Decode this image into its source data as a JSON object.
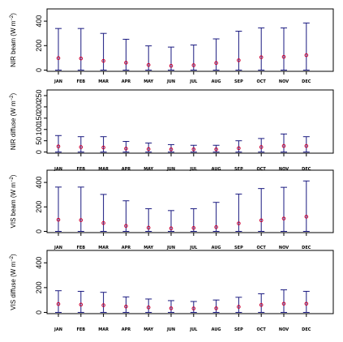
{
  "chart_data": [
    {
      "type": "scatter",
      "title": "",
      "ylabel": {
        "main": "NIR beam (W m",
        "sup": "−2",
        "close": ")"
      },
      "ylim": [
        -10,
        500
      ],
      "yticks": [
        0,
        200,
        400
      ],
      "categories": [
        "JAN",
        "FEB",
        "MAR",
        "APR",
        "MAY",
        "JUN",
        "JUL",
        "AUG",
        "SEP",
        "OCT",
        "NOV",
        "DEC"
      ],
      "series": [
        {
          "role": "mean",
          "values": [
            98,
            95,
            75,
            60,
            42,
            35,
            40,
            58,
            80,
            105,
            108,
            122
          ]
        },
        {
          "role": "range_min",
          "values": [
            0,
            0,
            0,
            0,
            0,
            0,
            0,
            0,
            0,
            0,
            0,
            0
          ]
        },
        {
          "role": "range_max",
          "values": [
            340,
            340,
            300,
            252,
            198,
            188,
            205,
            255,
            318,
            345,
            345,
            385
          ]
        }
      ],
      "grid": false
    },
    {
      "type": "scatter",
      "title": "",
      "ylabel": {
        "main": "NIR diffuse (W m",
        "sup": "−2",
        "close": ")"
      },
      "ylim": [
        -5,
        275
      ],
      "yticks": [
        0,
        50,
        100,
        150,
        200,
        250
      ],
      "categories": [
        "JAN",
        "FEB",
        "MAR",
        "APR",
        "MAY",
        "JUN",
        "JUL",
        "AUG",
        "SEP",
        "OCT",
        "NOV",
        "DEC"
      ],
      "series": [
        {
          "role": "mean",
          "values": [
            25,
            22,
            20,
            15,
            13,
            12,
            12,
            12,
            17,
            22,
            27,
            27
          ]
        },
        {
          "role": "range_min",
          "values": [
            0,
            0,
            0,
            0,
            0,
            0,
            0,
            0,
            0,
            0,
            0,
            0
          ]
        },
        {
          "role": "range_max",
          "values": [
            73,
            68,
            68,
            47,
            40,
            33,
            30,
            30,
            50,
            60,
            80,
            68
          ]
        }
      ],
      "grid": false
    },
    {
      "type": "scatter",
      "title": "",
      "ylabel": {
        "main": "VIS beam (W m",
        "sup": "−2",
        "close": ")"
      },
      "ylim": [
        -10,
        500
      ],
      "yticks": [
        0,
        200,
        400
      ],
      "categories": [
        "JAN",
        "FEB",
        "MAR",
        "APR",
        "MAY",
        "JUN",
        "JUL",
        "AUG",
        "SEP",
        "OCT",
        "NOV",
        "DEC"
      ],
      "series": [
        {
          "role": "mean",
          "values": [
            95,
            92,
            68,
            45,
            30,
            25,
            28,
            35,
            65,
            90,
            105,
            120
          ]
        },
        {
          "role": "range_min",
          "values": [
            0,
            0,
            0,
            0,
            0,
            0,
            0,
            0,
            0,
            0,
            0,
            0
          ]
        },
        {
          "role": "range_max",
          "values": [
            362,
            362,
            302,
            250,
            185,
            170,
            185,
            237,
            305,
            350,
            360,
            412
          ]
        }
      ],
      "grid": false
    },
    {
      "type": "scatter",
      "title": "",
      "ylabel": {
        "main": "VIS diffuse (W m",
        "sup": "−2",
        "close": ")"
      },
      "ylim": [
        -10,
        500
      ],
      "yticks": [
        0,
        200,
        400
      ],
      "categories": [
        "JAN",
        "FEB",
        "MAR",
        "APR",
        "MAY",
        "JUN",
        "JUL",
        "AUG",
        "SEP",
        "OCT",
        "NOV",
        "DEC"
      ],
      "series": [
        {
          "role": "mean",
          "values": [
            68,
            63,
            58,
            47,
            40,
            33,
            32,
            33,
            45,
            60,
            70,
            70
          ]
        },
        {
          "role": "range_min",
          "values": [
            0,
            0,
            0,
            0,
            0,
            0,
            0,
            0,
            0,
            0,
            0,
            0
          ]
        },
        {
          "role": "range_max",
          "values": [
            175,
            170,
            162,
            125,
            108,
            95,
            88,
            100,
            122,
            150,
            182,
            170
          ]
        }
      ],
      "grid": false
    }
  ],
  "colors": {
    "range_bar": "#1a1a80",
    "mean_marker": "#cc0033",
    "axis": "#000000"
  }
}
